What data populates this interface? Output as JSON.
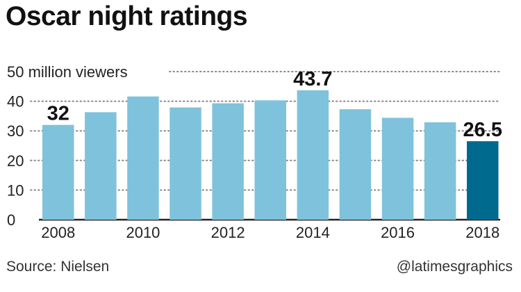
{
  "title": "Oscar night ratings",
  "source": "Source: Nielsen",
  "credit": "@latimesgraphics",
  "colors": {
    "bar": "#7fc2dc",
    "highlight": "#006a8e",
    "grid": "#888888",
    "axis": "#222222"
  },
  "chart_data": {
    "type": "bar",
    "title": "Oscar night ratings",
    "ylabel": "",
    "xlabel": "",
    "ylim": [
      0,
      50
    ],
    "yticks": [
      0,
      10,
      20,
      30,
      40,
      50
    ],
    "ytick_labels": [
      "0",
      "10",
      "20",
      "30",
      "40",
      "50 million viewers"
    ],
    "categories": [
      "2008",
      "2009",
      "2010",
      "2011",
      "2012",
      "2013",
      "2014",
      "2015",
      "2016",
      "2017",
      "2018"
    ],
    "xtick_labels": [
      "2008",
      "",
      "2010",
      "",
      "2012",
      "",
      "2014",
      "",
      "2016",
      "",
      "2018"
    ],
    "values": [
      32,
      36.3,
      41.6,
      37.9,
      39.3,
      40.3,
      43.7,
      37.3,
      34.4,
      32.9,
      26.5
    ],
    "highlight_index": 10,
    "data_labels": [
      {
        "index": 0,
        "text": "32"
      },
      {
        "index": 6,
        "text": "43.7"
      },
      {
        "index": 10,
        "text": "26.5"
      }
    ],
    "grid": true,
    "legend": "none"
  }
}
